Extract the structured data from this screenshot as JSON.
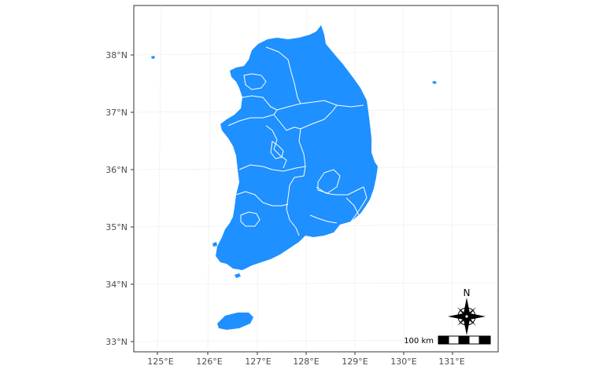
{
  "map": {
    "lat_labels": [
      "38°N",
      "37°N",
      "36°N",
      "35°N",
      "34°N",
      "33°N"
    ],
    "lon_labels": [
      "125°E",
      "126°E",
      "127°E",
      "128°E",
      "129°E",
      "130°E",
      "131°E"
    ],
    "scale_bar_label": "100 km",
    "north_label": "N",
    "land_color": "#1E90FF",
    "border_color": "#ffffff",
    "grid_color": "#ebebeb"
  }
}
